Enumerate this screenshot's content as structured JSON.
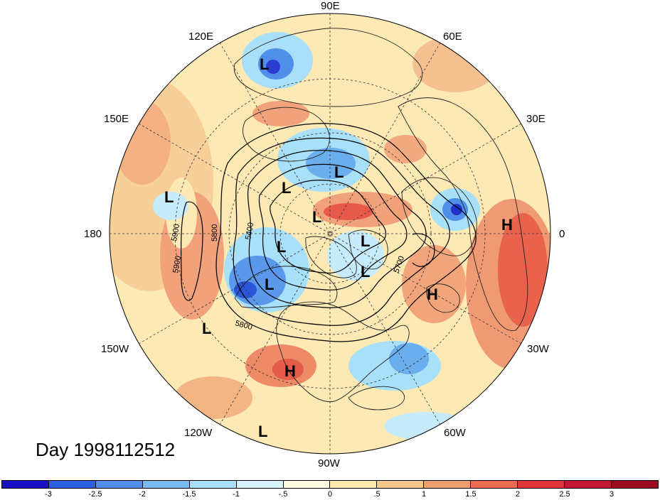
{
  "map": {
    "projection": "north-polar-stereographic",
    "day_label": "Day 1998112512",
    "longitude_labels": {
      "deg90E": "90E",
      "deg120E": "120E",
      "deg60E": "60E",
      "deg150E": "150E",
      "deg30E": "30E",
      "deg180": "180",
      "deg0": "0",
      "deg150W": "150W",
      "deg30W": "30W",
      "deg120W": "120W",
      "deg60W": "60W",
      "deg90W": "90W"
    },
    "pressure_centers": [
      {
        "type": "L",
        "label": "L"
      },
      {
        "type": "L",
        "label": "L"
      },
      {
        "type": "L",
        "label": "L"
      },
      {
        "type": "L",
        "label": "L"
      },
      {
        "type": "L",
        "label": "L"
      },
      {
        "type": "L",
        "label": "L"
      },
      {
        "type": "L",
        "label": "L"
      },
      {
        "type": "L",
        "label": "L"
      },
      {
        "type": "L",
        "label": "L"
      },
      {
        "type": "L",
        "label": "L"
      },
      {
        "type": "L",
        "label": "L"
      },
      {
        "type": "H",
        "label": "H"
      },
      {
        "type": "H",
        "label": "H"
      },
      {
        "type": "H",
        "label": "H"
      }
    ],
    "contour_labels": [
      "5900",
      "5900",
      "5800",
      "5400",
      "5700",
      "5800"
    ],
    "colors": {
      "ocean_neutral": "#fdf2cc",
      "light_orange": "#f8cf94",
      "orange": "#f3a07a",
      "red": "#e8584a",
      "light_blue": "#c6ecfb",
      "blue": "#7cc3f0",
      "dark_blue": "#2a55d8",
      "land_outline": "#222222",
      "contour": "#000000"
    }
  },
  "colorbar": {
    "colors": [
      "#1a10c8",
      "#2b5fe0",
      "#4f8fea",
      "#79b8f0",
      "#a7e0f8",
      "#d7f4fb",
      "#fffbe2",
      "#fbe9b0",
      "#f5c98c",
      "#f0a070",
      "#eb6a52",
      "#e0383a",
      "#c21830",
      "#9a0a20"
    ],
    "labels": [
      "-3",
      "-2.5",
      "-2",
      "-1.5",
      "-1",
      "-.5",
      "0",
      ".5",
      "1",
      "1.5",
      "2",
      "2.5",
      "3"
    ]
  }
}
